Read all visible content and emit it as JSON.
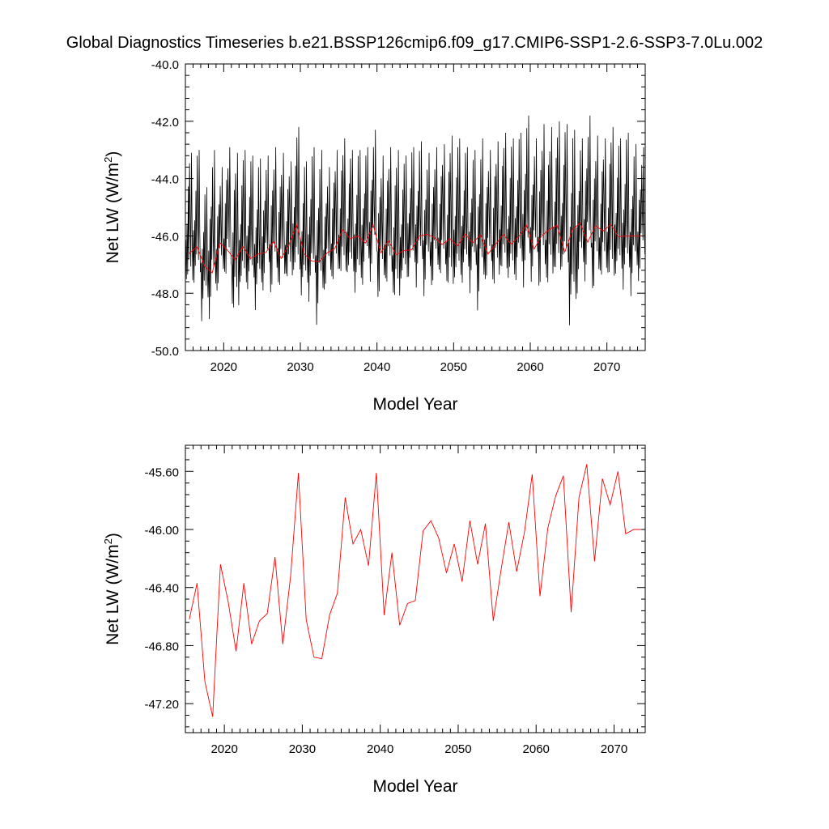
{
  "title": "Global Diagnostics Timeseries b.e21.BSSP126cmip6.f09_g17.CMIP6-SSP1-2.6-SSP3-7.0Lu.002",
  "colors": {
    "monthly": "#000000",
    "annual": "#ff0000",
    "axes": "#000000"
  },
  "chart_data": [
    {
      "type": "line",
      "xlabel": "Model Year",
      "ylabel": "Net LW (W/m",
      "ylabel_sup": "2",
      "ylabel_close": ")",
      "xlim": [
        2015,
        2075
      ],
      "ylim": [
        -50.0,
        -40.0
      ],
      "xticks": [
        2020,
        2030,
        2040,
        2050,
        2060,
        2070
      ],
      "yticks": [
        "-50.0",
        "-48.0",
        "-46.0",
        "-44.0",
        "-42.0",
        "-40.0"
      ],
      "ytick_values": [
        -50,
        -48,
        -46,
        -44,
        -42,
        -40
      ],
      "grid": false,
      "series": [
        {
          "style": "monthly",
          "annual_peak": [
            -43.1,
            -43.0,
            -44.3,
            -43.0,
            -43.6,
            -42.9,
            -43.1,
            -43.0,
            -43.2,
            -43.3,
            -43.2,
            -42.9,
            -43.1,
            -43.4,
            -42.2,
            -43.4,
            -42.9,
            -43.0,
            -43.6,
            -43.0,
            -42.6,
            -43.0,
            -43.0,
            -42.9,
            -42.3,
            -43.2,
            -42.9,
            -43.0,
            -43.2,
            -42.9,
            -42.7,
            -43.1,
            -42.9,
            -42.8,
            -42.5,
            -42.6,
            -42.9,
            -43.0,
            -42.6,
            -43.0,
            -42.7,
            -42.4,
            -42.6,
            -42.4,
            -41.8,
            -42.6,
            -42.1,
            -42.2,
            -42.0,
            -42.1,
            -42.3,
            -42.6,
            -41.8,
            -42.5,
            -42.6,
            -42.2,
            -42.6,
            -42.4,
            -42.8,
            -42.9
          ],
          "annual_trough": [
            -48.0,
            -47.9,
            -49.0,
            -48.9,
            -48.0,
            -47.6,
            -49.0,
            -48.1,
            -48.1,
            -48.6,
            -47.9,
            -48.1,
            -48.0,
            -47.8,
            -47.7,
            -48.3,
            -48.3,
            -49.1,
            -48.0,
            -47.8,
            -47.7,
            -47.7,
            -48.2,
            -47.7,
            -47.6,
            -48.3,
            -47.9,
            -48.6,
            -47.9,
            -47.6,
            -47.8,
            -48.1,
            -47.9,
            -47.6,
            -48.2,
            -47.9,
            -47.8,
            -48.0,
            -48.6,
            -47.7,
            -48.0,
            -47.6,
            -47.9,
            -47.7,
            -47.8,
            -47.6,
            -48.0,
            -48.0,
            -47.7,
            -47.5,
            -49.3,
            -48.0,
            -47.6,
            -48.1,
            -47.7,
            -47.9,
            -47.7,
            -48.0,
            -48.1,
            -47.6
          ]
        },
        {
          "style": "annual",
          "x": [
            2015.5,
            2016.5,
            2017.5,
            2018.5,
            2019.5,
            2020.5,
            2021.5,
            2022.5,
            2023.5,
            2024.5,
            2025.5,
            2026.5,
            2027.5,
            2028.5,
            2029.5,
            2030.5,
            2031.5,
            2032.5,
            2033.5,
            2034.5,
            2035.5,
            2036.5,
            2037.5,
            2038.5,
            2039.5,
            2040.5,
            2041.5,
            2042.5,
            2043.5,
            2044.5,
            2045.5,
            2046.5,
            2047.5,
            2048.5,
            2049.5,
            2050.5,
            2051.5,
            2052.5,
            2053.5,
            2054.5,
            2055.5,
            2056.5,
            2057.5,
            2058.5,
            2059.5,
            2060.5,
            2061.5,
            2062.5,
            2063.5,
            2064.5,
            2065.5,
            2066.5,
            2067.5,
            2068.5,
            2069.5,
            2070.5,
            2071.5,
            2072.5,
            2073.5,
            2074.5
          ],
          "values": [
            -46.62,
            -46.37,
            -47.05,
            -47.29,
            -46.24,
            -46.5,
            -46.84,
            -46.37,
            -46.79,
            -46.63,
            -46.58,
            -46.19,
            -46.79,
            -46.32,
            -45.61,
            -46.62,
            -46.88,
            -46.89,
            -46.59,
            -46.44,
            -45.78,
            -46.1,
            -46.0,
            -46.25,
            -45.61,
            -46.59,
            -46.16,
            -46.66,
            -46.51,
            -46.49,
            -46.01,
            -45.94,
            -46.06,
            -46.3,
            -46.1,
            -46.36,
            -45.94,
            -46.24,
            -45.96,
            -46.63,
            -46.28,
            -45.95,
            -46.29,
            -46.02,
            -45.62,
            -46.46,
            -45.99,
            -45.77,
            -45.63,
            -46.57,
            -45.78,
            -45.55,
            -46.22,
            -45.65,
            -45.83,
            -45.6,
            -46.03,
            -46.0,
            -46.0,
            -46.0
          ]
        }
      ]
    },
    {
      "type": "line",
      "xlabel": "Model Year",
      "ylabel": "Net LW (W/m",
      "ylabel_sup": "2",
      "ylabel_close": ")",
      "xlim": [
        2015,
        2074
      ],
      "ylim": [
        -47.4,
        -45.42
      ],
      "xticks": [
        2020,
        2030,
        2040,
        2050,
        2060,
        2070
      ],
      "yticks": [
        "-47.20",
        "-46.80",
        "-46.40",
        "-46.00",
        "-45.60"
      ],
      "ytick_values": [
        -47.2,
        -46.8,
        -46.4,
        -46.0,
        -45.6
      ],
      "grid": false,
      "series": [
        {
          "style": "annual",
          "x": [
            2015.5,
            2016.5,
            2017.5,
            2018.5,
            2019.5,
            2020.5,
            2021.5,
            2022.5,
            2023.5,
            2024.5,
            2025.5,
            2026.5,
            2027.5,
            2028.5,
            2029.5,
            2030.5,
            2031.5,
            2032.5,
            2033.5,
            2034.5,
            2035.5,
            2036.5,
            2037.5,
            2038.5,
            2039.5,
            2040.5,
            2041.5,
            2042.5,
            2043.5,
            2044.5,
            2045.5,
            2046.5,
            2047.5,
            2048.5,
            2049.5,
            2050.5,
            2051.5,
            2052.5,
            2053.5,
            2054.5,
            2055.5,
            2056.5,
            2057.5,
            2058.5,
            2059.5,
            2060.5,
            2061.5,
            2062.5,
            2063.5,
            2064.5,
            2065.5,
            2066.5,
            2067.5,
            2068.5,
            2069.5,
            2070.5,
            2071.5,
            2072.5,
            2073.5
          ],
          "values": [
            -46.62,
            -46.37,
            -47.05,
            -47.29,
            -46.24,
            -46.5,
            -46.84,
            -46.37,
            -46.79,
            -46.63,
            -46.58,
            -46.19,
            -46.79,
            -46.32,
            -45.61,
            -46.62,
            -46.88,
            -46.89,
            -46.59,
            -46.44,
            -45.78,
            -46.1,
            -46.0,
            -46.25,
            -45.61,
            -46.59,
            -46.16,
            -46.66,
            -46.51,
            -46.49,
            -46.01,
            -45.94,
            -46.06,
            -46.3,
            -46.1,
            -46.36,
            -45.94,
            -46.24,
            -45.96,
            -46.63,
            -46.28,
            -45.95,
            -46.29,
            -46.02,
            -45.62,
            -46.46,
            -45.99,
            -45.77,
            -45.63,
            -46.57,
            -45.78,
            -45.55,
            -46.22,
            -45.65,
            -45.83,
            -45.6,
            -46.03,
            -46.0,
            -46.0
          ]
        }
      ]
    }
  ]
}
